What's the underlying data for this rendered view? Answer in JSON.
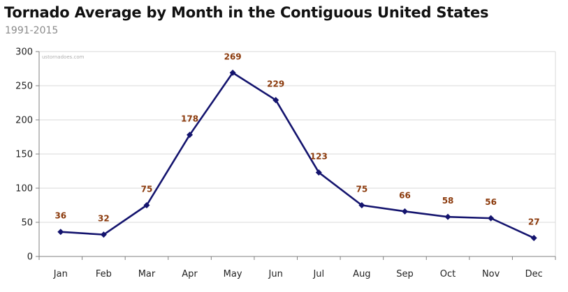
{
  "header": {
    "title": "Tornado Average by Month in the Contiguous United States",
    "subtitle": "1991-2015"
  },
  "watermark": "ustornadoes.com",
  "colors": {
    "line": "#14146e",
    "marker": "#14146e",
    "data_label": "#8b3a0c",
    "grid": "#d9d9d9",
    "axis": "#808080"
  },
  "chart_data": {
    "type": "line",
    "title": "Tornado Average by Month in the Contiguous United States",
    "subtitle": "1991-2015",
    "categories": [
      "Jan",
      "Feb",
      "Mar",
      "Apr",
      "May",
      "Jun",
      "Jul",
      "Aug",
      "Sep",
      "Oct",
      "Nov",
      "Dec"
    ],
    "series": [
      {
        "values": [
          36,
          32,
          75,
          178,
          269,
          229,
          123,
          75,
          66,
          58,
          56,
          27
        ]
      }
    ],
    "data_labels": [
      "36",
      "32",
      "75",
      "178",
      "269",
      "229",
      "123",
      "75",
      "66",
      "58",
      "56",
      "27"
    ],
    "yticks": [
      "0",
      "50",
      "100",
      "150",
      "200",
      "250",
      "300"
    ],
    "ylim": [
      0,
      300
    ],
    "grid": true,
    "marker": "diamond",
    "legend": false
  }
}
